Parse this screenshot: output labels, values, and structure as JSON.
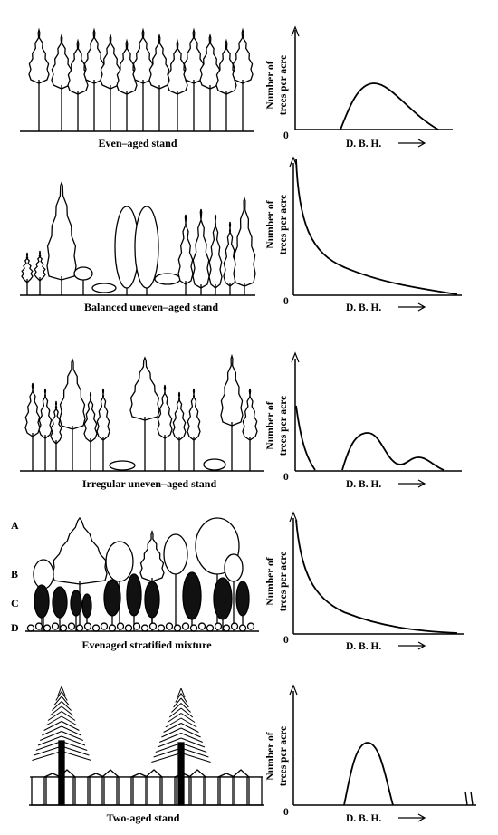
{
  "panels": [
    {
      "id": "even",
      "caption": "Even–aged stand",
      "curve": "bell"
    },
    {
      "id": "balanced",
      "caption": "Balanced uneven–aged stand",
      "curve": "reverse-j"
    },
    {
      "id": "irregular",
      "caption": "Irregular uneven–aged stand",
      "curve": "multi-modal"
    },
    {
      "id": "stratified",
      "caption": "Evenaged stratified mixture",
      "curve": "reverse-j"
    },
    {
      "id": "twoaged",
      "caption": "Two-aged stand",
      "curve": "narrow-bell"
    }
  ],
  "axis": {
    "y_line1": "Number of",
    "y_line2": "trees per acre",
    "x_label": "D. B. H.",
    "origin": "0"
  },
  "layers": [
    "A",
    "B",
    "C",
    "D"
  ]
}
